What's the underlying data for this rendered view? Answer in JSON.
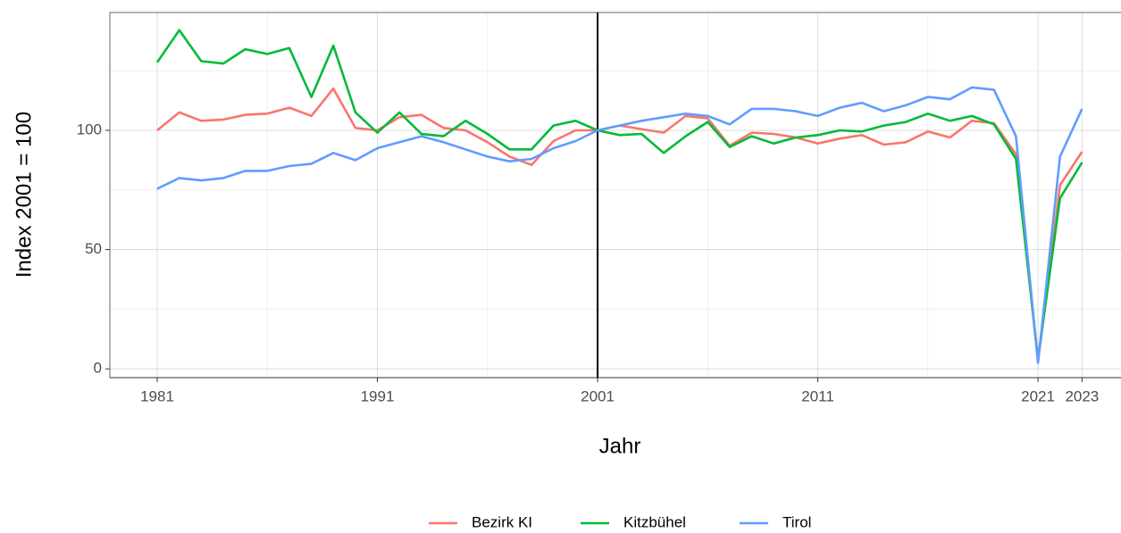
{
  "chart_data": {
    "type": "line",
    "xlabel": "Jahr",
    "ylabel": "Index 2001 = 100",
    "x": [
      1981,
      1982,
      1983,
      1984,
      1985,
      1986,
      1987,
      1988,
      1989,
      1990,
      1991,
      1992,
      1993,
      1994,
      1995,
      1996,
      1997,
      1998,
      1999,
      2000,
      2001,
      2002,
      2003,
      2004,
      2005,
      2006,
      2007,
      2008,
      2009,
      2010,
      2011,
      2012,
      2013,
      2014,
      2015,
      2016,
      2017,
      2018,
      2019,
      2020,
      2021,
      2022,
      2023
    ],
    "series": [
      {
        "name": "Bezirk KI",
        "color": "#F8766D",
        "values": [
          100,
          107.5,
          104,
          104.5,
          106.5,
          107,
          109.5,
          106,
          117.5,
          101,
          100,
          105.5,
          106.5,
          101,
          100,
          95,
          89,
          85.5,
          95.5,
          100,
          100,
          102,
          100.5,
          99,
          106,
          105,
          93.5,
          99,
          98.5,
          97,
          94.5,
          96.5,
          98,
          94,
          95,
          99.5,
          97,
          104,
          103,
          90,
          3,
          77,
          91
        ]
      },
      {
        "name": "Kitzbühel",
        "color": "#00BA38",
        "values": [
          128.5,
          142,
          129,
          128,
          134,
          132,
          134.5,
          114,
          135.5,
          107.5,
          99,
          107.5,
          98.5,
          97.5,
          104,
          98.5,
          92,
          92,
          102,
          104,
          100,
          98,
          98.5,
          90.5,
          97.5,
          103.5,
          93,
          97.5,
          94.5,
          97,
          98,
          100,
          99.5,
          102,
          103.5,
          107,
          104,
          106,
          102.5,
          88,
          4,
          71.5,
          86.5
        ]
      },
      {
        "name": "Tirol",
        "color": "#619CFF",
        "values": [
          75.5,
          80,
          79,
          80,
          83,
          83,
          85,
          86,
          90.5,
          87.5,
          92.5,
          95,
          97.5,
          95,
          92,
          89,
          87,
          88,
          92.5,
          95.5,
          100,
          102,
          104,
          105.5,
          107,
          106,
          102.5,
          109,
          109,
          108,
          106,
          109.5,
          111.5,
          108,
          110.5,
          114,
          113,
          118,
          117,
          97.5,
          2.5,
          89,
          109
        ]
      }
    ],
    "xlim": [
      1978.85,
      2024.77
    ],
    "xticks": [
      1981,
      1991,
      2001,
      2011,
      2021,
      2023
    ],
    "xminor_ticks": [
      1986,
      1996,
      2006,
      2016
    ],
    "ylim": [
      -3.7,
      149.4
    ],
    "yticks": [
      0,
      50,
      100
    ],
    "yminor_ticks": [
      25,
      75,
      125
    ],
    "vline": 2001,
    "grid": true,
    "legend": "bottom"
  }
}
